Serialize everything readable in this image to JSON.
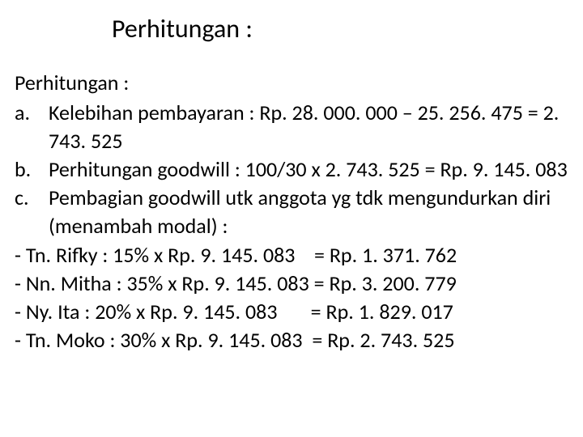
{
  "title": "Perhitungan :",
  "subheading": "Perhitungan :",
  "items": {
    "a": {
      "marker": "a.",
      "text": "Kelebihan pembayaran : Rp. 28. 000. 000 – 25. 256. 475 = 2. 743. 525"
    },
    "b": {
      "marker": "b.",
      "text": "Perhitungan goodwill : 100/30 x 2. 743. 525 = Rp. 9. 145. 083"
    },
    "c": {
      "marker": "c.",
      "text": "Pembagian goodwill utk anggota yg tdk mengundurkan diri (menambah modal) :"
    }
  },
  "dash_items": {
    "d1": "- Tn. Rifky : 15% x Rp. 9. 145. 083    = Rp. 1. 371. 762",
    "d2": "- Nn. Mitha : 35% x Rp. 9. 145. 083 = Rp. 3. 200. 779",
    "d3": "- Ny. Ita : 20% x Rp. 9. 145. 083       = Rp. 1. 829. 017",
    "d4": "- Tn. Moko : 30% x Rp. 9. 145. 083  = Rp. 2. 743. 525"
  },
  "styles": {
    "title_fontsize": 32,
    "content_fontsize": 26,
    "background_color": "#ffffff",
    "text_color": "#000000",
    "font_family": "Calibri"
  }
}
